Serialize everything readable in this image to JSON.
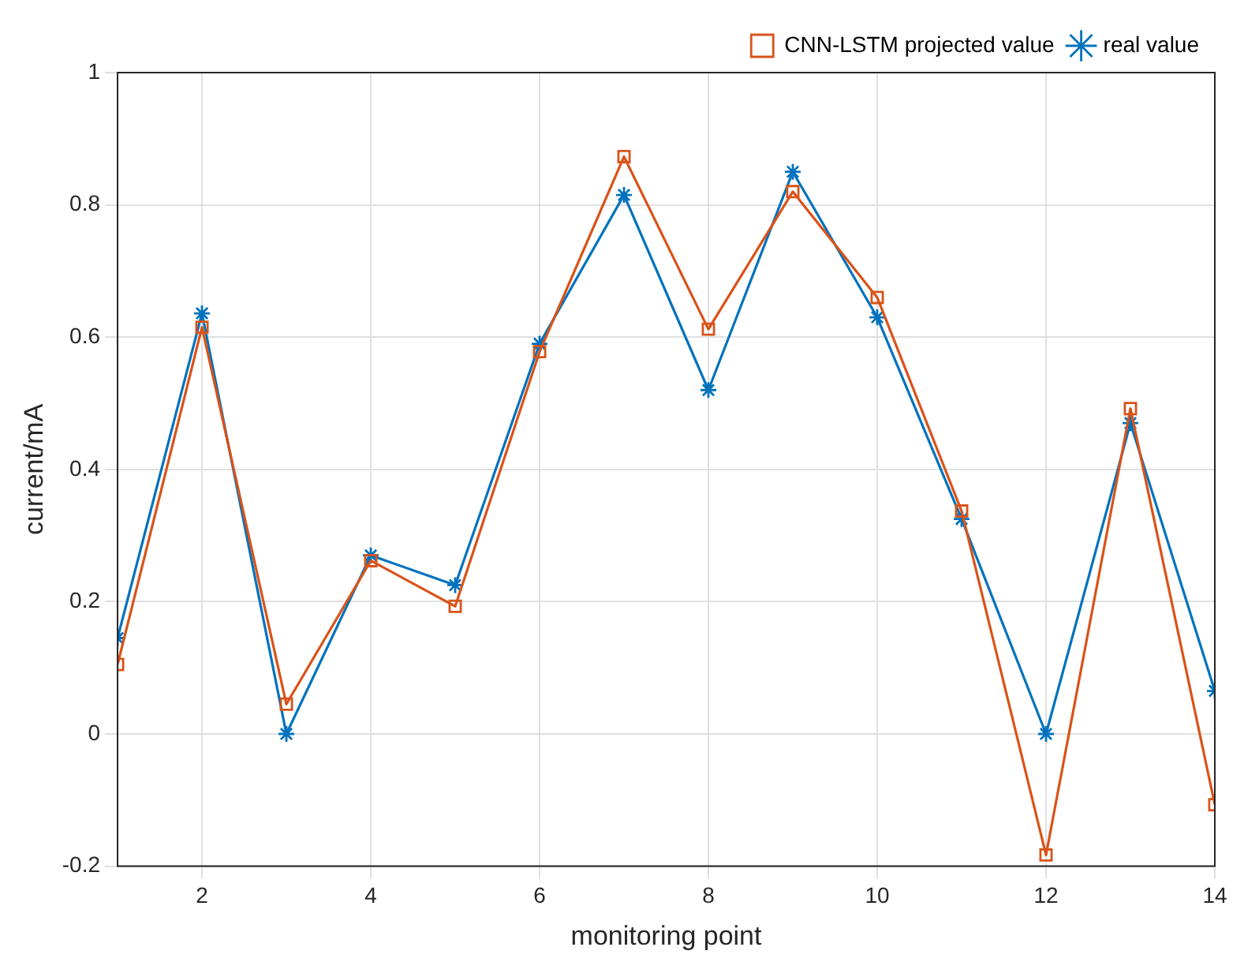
{
  "chart_data": {
    "type": "line",
    "xlabel": "monitoring point",
    "ylabel": "current/mA",
    "x": [
      1,
      2,
      3,
      4,
      5,
      6,
      7,
      8,
      9,
      10,
      11,
      12,
      13,
      14
    ],
    "series": [
      {
        "name": "real value",
        "color": "#0072bd",
        "marker": "cross",
        "values": [
          0.145,
          0.636,
          0.0,
          0.27,
          0.225,
          0.59,
          0.815,
          0.52,
          0.85,
          0.63,
          0.325,
          0.0,
          0.47,
          0.065
        ]
      },
      {
        "name": "CNN-LSTM projected value",
        "color": "#d95319",
        "marker": "square",
        "values": [
          0.105,
          0.615,
          0.045,
          0.262,
          0.193,
          0.578,
          0.873,
          0.612,
          0.82,
          0.66,
          0.337,
          -0.183,
          0.492,
          -0.107
        ]
      }
    ],
    "xlim": [
      1,
      14
    ],
    "xticks": [
      2,
      4,
      6,
      8,
      10,
      12,
      14
    ],
    "ylim": [
      -0.2,
      1
    ],
    "yticks": [
      -0.2,
      0,
      0.2,
      0.4,
      0.6,
      0.8,
      1
    ],
    "grid": true,
    "legend": "top right",
    "line_style": "solid"
  }
}
